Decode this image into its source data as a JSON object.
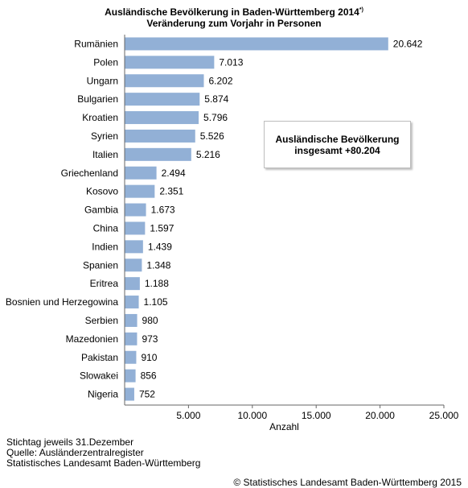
{
  "title": {
    "line1": "Ausländische Bevölkerung in Baden-Württemberg 2014",
    "footnote_mark": "*)",
    "line2": "Veränderung zum Vorjahr in Personen"
  },
  "annotation": {
    "line1": "Ausländische Bevölkerung",
    "line2": "insgesamt  +80.204"
  },
  "footer": {
    "line1": "Stichtag jeweils 31.Dezember",
    "line2": "Quelle: Ausländerzentralregister",
    "line3": "Statistisches Landesamt Baden-Württemberg",
    "copyright": "© Statistisches Landesamt Baden-Württemberg 2015"
  },
  "chart_data": {
    "type": "bar",
    "orientation": "horizontal",
    "categories": [
      "Rumänien",
      "Polen",
      "Ungarn",
      "Bulgarien",
      "Kroatien",
      "Syrien",
      "Italien",
      "Griechenland",
      "Kosovo",
      "Gambia",
      "China",
      "Indien",
      "Spanien",
      "Eritrea",
      "Bosnien und Herzegowina",
      "Serbien",
      "Mazedonien",
      "Pakistan",
      "Slowakei",
      "Nigeria"
    ],
    "values": [
      20642,
      7013,
      6202,
      5874,
      5796,
      5526,
      5216,
      2494,
      2351,
      1673,
      1597,
      1439,
      1348,
      1188,
      1105,
      980,
      973,
      910,
      856,
      752
    ],
    "value_labels": [
      "20.642",
      "7.013",
      "6.202",
      "5.874",
      "5.796",
      "5.526",
      "5.216",
      "2.494",
      "2.351",
      "1.673",
      "1.597",
      "1.439",
      "1.348",
      "1.188",
      "1.105",
      "980",
      "973",
      "910",
      "856",
      "752"
    ],
    "xlabel": "Anzahl",
    "xlim": [
      0,
      25000
    ],
    "xticks": [
      5000,
      10000,
      15000,
      20000,
      25000
    ],
    "xtick_labels": [
      "5.000",
      "10.000",
      "15.000",
      "20.000",
      "25.000"
    ],
    "grid": false,
    "bar_color": "#92b0d6"
  }
}
